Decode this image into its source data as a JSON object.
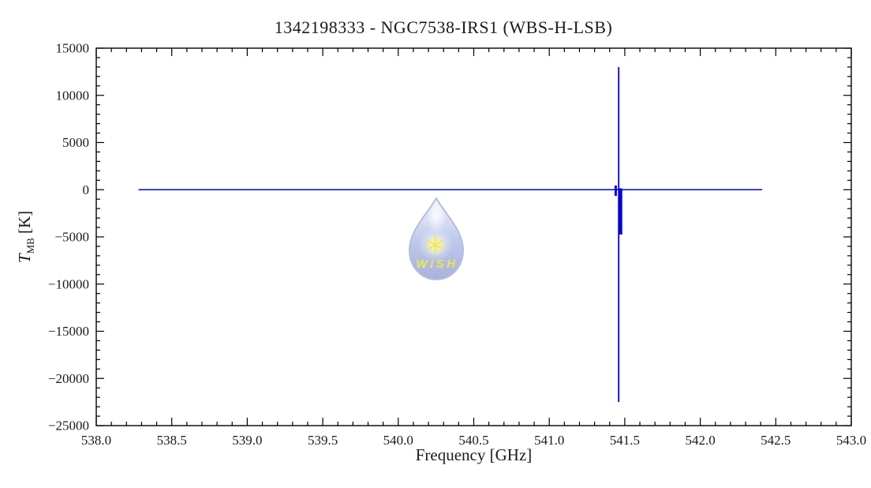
{
  "figure": {
    "background": "#ffffff"
  },
  "chart_data": {
    "type": "line",
    "title": "1342198333 - NGC7538-IRS1 (WBS-H-LSB)",
    "xlabel": "Frequency [GHz]",
    "ylabel": "T_MB [K]",
    "ylabel_parts": {
      "symbol": "T",
      "subscript": "MB",
      "unit": " [K]"
    },
    "xlim": [
      538.0,
      543.0
    ],
    "ylim": [
      -25000,
      15000
    ],
    "x_ticks": [
      538.0,
      538.5,
      539.0,
      539.5,
      540.0,
      540.5,
      541.0,
      541.5,
      542.0,
      542.5,
      543.0
    ],
    "x_tick_labels": [
      "538.0",
      "538.5",
      "539.0",
      "539.5",
      "540.0",
      "540.5",
      "541.0",
      "541.5",
      "542.0",
      "542.5",
      "543.0"
    ],
    "x_minor_step": 0.1,
    "y_ticks": [
      -25000,
      -20000,
      -15000,
      -10000,
      -5000,
      0,
      5000,
      10000,
      15000
    ],
    "y_tick_labels": [
      "−25000",
      "−20000",
      "−15000",
      "−10000",
      "−5000",
      "0",
      "5000",
      "10000",
      "15000"
    ],
    "y_minor_step": 1000,
    "grid": false,
    "legend": false,
    "line_color": "#0000dd",
    "axis_color": "#000000",
    "series": [
      {
        "name": "baseline",
        "stroke_width": 1.5,
        "points": [
          [
            538.28,
            0
          ],
          [
            542.41,
            0
          ]
        ]
      },
      {
        "name": "main-spike",
        "stroke_width": 1.8,
        "points": [
          [
            541.46,
            13000
          ],
          [
            541.46,
            -22500
          ]
        ]
      },
      {
        "name": "noise-band",
        "stroke_width": 5.0,
        "points": [
          [
            541.47,
            150
          ],
          [
            541.47,
            -4750
          ]
        ]
      },
      {
        "name": "zero-glitch",
        "stroke_width": 3.0,
        "points": [
          [
            541.44,
            450
          ],
          [
            541.44,
            -650
          ]
        ]
      }
    ]
  },
  "watermark": {
    "label": "WISH",
    "drop_edge_color": "#a9b4df",
    "drop_top_color": "#f2f5fc",
    "drop_mid_color": "#b8c3e8",
    "drop_bottom_color": "#9ca8d8",
    "glow_color": "#eaf2fd",
    "star_color": "#f2e93a",
    "text_color": "#ece335"
  }
}
